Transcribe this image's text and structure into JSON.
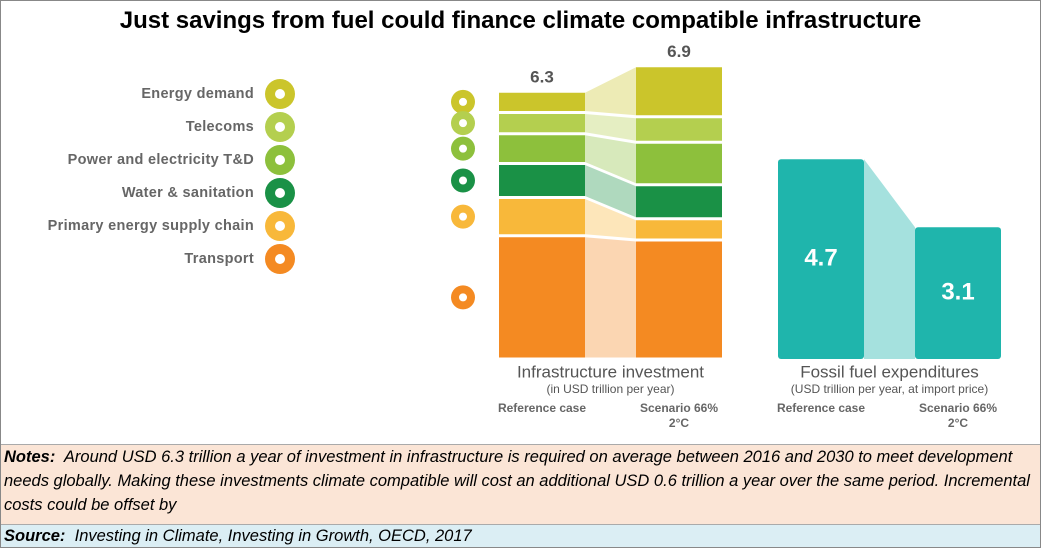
{
  "title": "Just savings from fuel could finance climate compatible infrastructure",
  "notes": {
    "label": "Notes:",
    "text": "Around USD 6.3 trillion a year of investment in infrastructure is required on average between 2016 and 2030 to meet development needs globally. Making these investments climate compatible will cost an additional USD 0.6 trillion a year over the same period. Incremental costs could be offset by"
  },
  "source": {
    "label": "Source:",
    "text": "Investing in Climate, Investing in Growth, OECD, 2017"
  },
  "chart_data": [
    {
      "type": "stacked_bar",
      "title": "Infrastructure investment",
      "subtitle": "(in USD trillion per year)",
      "categories": [
        "Reference case",
        "Scenario 66% 2°C"
      ],
      "totals": [
        6.3,
        6.9
      ],
      "series": [
        {
          "name": "Energy demand",
          "color": "#cbc52b",
          "values": [
            0.5,
            1.2
          ]
        },
        {
          "name": "Telecoms",
          "color": "#b4cf4f",
          "values": [
            0.5,
            0.6
          ]
        },
        {
          "name": "Power and electricity T&D",
          "color": "#8dc03c",
          "values": [
            0.7,
            1.0
          ]
        },
        {
          "name": "Water & sanitation",
          "color": "#1a9146",
          "values": [
            0.8,
            0.8
          ]
        },
        {
          "name": "Primary energy supply chain",
          "color": "#f8b83a",
          "values": [
            0.9,
            0.5
          ]
        },
        {
          "name": "Transport",
          "color": "#f48a22",
          "values": [
            2.9,
            2.8
          ]
        }
      ]
    },
    {
      "type": "bar",
      "title": "Fossil fuel expenditures",
      "subtitle": "(USD trillion per year, at import price)",
      "categories": [
        "Reference case",
        "Scenario 66% 2°C"
      ],
      "values": [
        4.7,
        3.1
      ],
      "color": "#1fb5ac"
    }
  ]
}
